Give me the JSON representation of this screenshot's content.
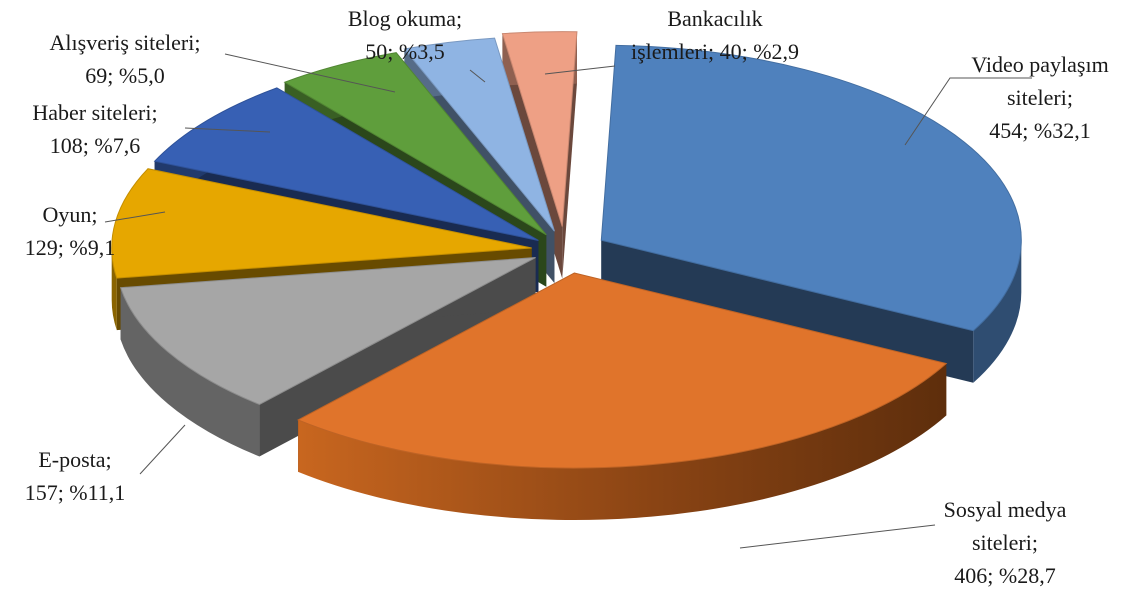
{
  "chart_data": {
    "type": "pie",
    "title": "",
    "legend": "none",
    "slices": [
      {
        "label": "Video paylaşım siteleri",
        "value": 454,
        "percent": "%32,1",
        "color": "#4f81bd",
        "label_lines": [
          "Video paylaşım",
          "siteleri;",
          "454; %32,1"
        ]
      },
      {
        "label": "Sosyal medya siteleri",
        "value": 406,
        "percent": "%28,7",
        "color": "#e0742b",
        "label_lines": [
          "Sosyal medya",
          "siteleri;",
          "406; %28,7"
        ]
      },
      {
        "label": "E-posta",
        "value": 157,
        "percent": "%11,1",
        "color": "#a6a6a6",
        "label_lines": [
          "E-posta;",
          "157; %11,1"
        ]
      },
      {
        "label": "Oyun",
        "value": 129,
        "percent": "%9,1",
        "color": "#e6a700",
        "label_lines": [
          "Oyun;",
          "129; %9,1"
        ]
      },
      {
        "label": "Haber siteleri",
        "value": 108,
        "percent": "%7,6",
        "color": "#3760b4",
        "label_lines": [
          "Haber siteleri;",
          "108; %7,6"
        ]
      },
      {
        "label": "Alışveriş siteleri",
        "value": 69,
        "percent": "%5,0",
        "color": "#5f9e3c",
        "label_lines": [
          "Alışveriş siteleri;",
          "69; %5,0"
        ]
      },
      {
        "label": "Blog okuma",
        "value": 50,
        "percent": "%3,5",
        "color": "#8fb4e3",
        "label_lines": [
          "Blog okuma;",
          "50; %3,5"
        ]
      },
      {
        "label": "Bankacılık işlemleri",
        "value": 40,
        "percent": "%2,9",
        "color": "#eea085",
        "label_lines": [
          "Bankacılık",
          "işlemleri; 40; %2,9"
        ]
      }
    ]
  }
}
